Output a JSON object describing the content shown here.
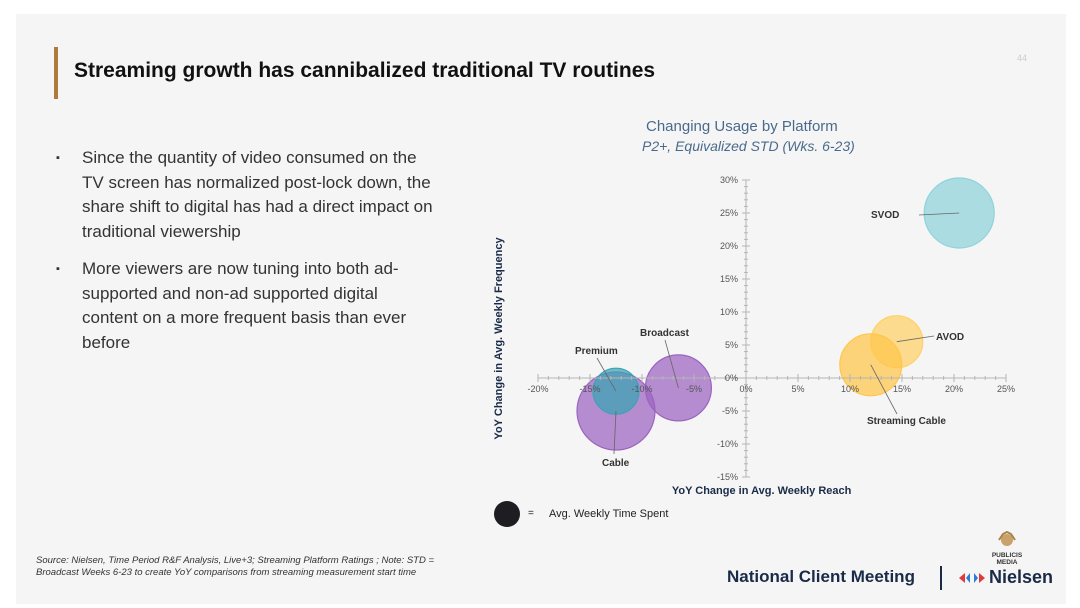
{
  "slide": {
    "title": "Streaming growth has cannibalized traditional TV routines",
    "page_number": "44",
    "accent_color": "#b07a3c"
  },
  "bullets": [
    "Since the quantity of video consumed on the TV screen has normalized post-lock down, the share shift to digital has had a direct impact on traditional viewership",
    "More viewers are now tuning into both ad-supported and non-ad supported digital content on a more frequent basis than ever before"
  ],
  "chart_data": {
    "type": "scatter",
    "title": "Changing Usage by Platform",
    "subtitle": "P2+, Equivalized STD (Wks. 6-23)",
    "xlabel": "YoY Change in Avg. Weekly Reach",
    "ylabel": "YoY Change in Avg. Weekly Frequency",
    "xlim": [
      -20,
      25
    ],
    "ylim": [
      -15,
      30
    ],
    "x_ticks": [
      "-20%",
      "-15%",
      "-10%",
      "-5%",
      "0%",
      "5%",
      "10%",
      "15%",
      "20%",
      "25%"
    ],
    "y_ticks": [
      "-15%",
      "-10%",
      "-5%",
      "0%",
      "5%",
      "10%",
      "15%",
      "20%",
      "25%",
      "30%"
    ],
    "bubble_size_label": "Avg. Weekly Time Spent",
    "series": [
      {
        "name": "SVOD",
        "x": 20.5,
        "y": 25,
        "size": 35,
        "color": "#8fd3da"
      },
      {
        "name": "AVOD",
        "x": 14.5,
        "y": 5.5,
        "size": 26,
        "color": "#ffd166"
      },
      {
        "name": "Streaming Cable",
        "x": 12,
        "y": 2,
        "size": 31,
        "color": "#ffc64a"
      },
      {
        "name": "Broadcast",
        "x": -6.5,
        "y": -1.5,
        "size": 33,
        "color": "#9b64c0"
      },
      {
        "name": "Cable",
        "x": -12.5,
        "y": -5,
        "size": 39,
        "color": "#9b64c0"
      },
      {
        "name": "Premium",
        "x": -12.5,
        "y": -2,
        "size": 23,
        "color": "#3aa3b4"
      }
    ]
  },
  "legend": {
    "equals": "=",
    "label": "Avg. Weekly Time Spent"
  },
  "footer": {
    "source": "Source: Nielsen, Time Period R&F Analysis, Live+3; Streaming Platform Ratings ; Note: STD = Broadcast Weeks 6-23 to create YoY comparisons from streaming measurement start time",
    "meeting": "National Client Meeting",
    "brand": "Nielsen",
    "agency_line1": "PUBLICIS",
    "agency_line2": "MEDIA"
  }
}
